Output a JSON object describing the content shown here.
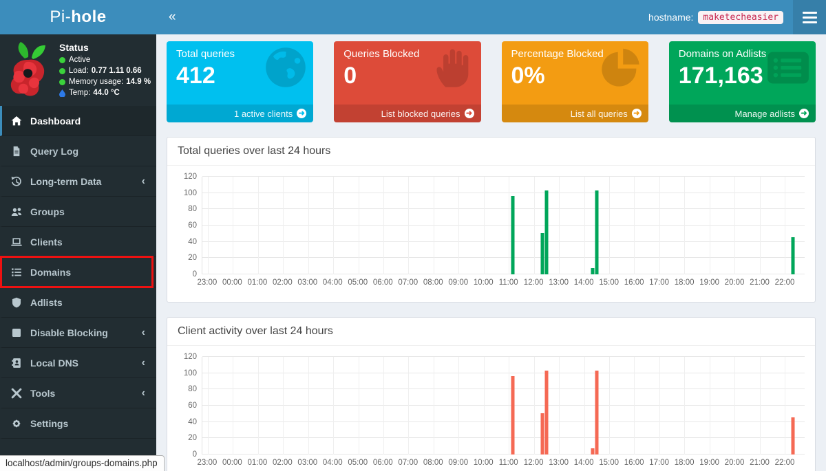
{
  "header": {
    "brand_pre": "Pi-",
    "brand_bold": "hole",
    "collapse_icon": "«",
    "hostname_label": "hostname:",
    "hostname_value": "maketecheasier"
  },
  "theme": {
    "navbar_blue": "#3c8dbc",
    "navbar_dark_blue": "#367fa9",
    "sidebar_dark": "#222d32",
    "annotation_red": "#ee1111",
    "status_dot_green": "#3bd23b",
    "temp_drop_blue": "#2d7ae8"
  },
  "sidebar": {
    "status": {
      "title": "Status",
      "rows": [
        {
          "icon": "green-dot-icon",
          "label": "Active",
          "value": ""
        },
        {
          "icon": "green-dot-icon",
          "label": "Load:",
          "value": "0.77  1.11  0.66"
        },
        {
          "icon": "green-dot-icon",
          "label": "Memory usage:",
          "value": "14.9 %"
        },
        {
          "icon": "temp-drop-icon",
          "label": "Temp:",
          "value": "44.0 °C"
        }
      ]
    },
    "menu": [
      {
        "label": "Dashboard",
        "icon": "home-icon",
        "active": true,
        "expandable": false,
        "annotated": false
      },
      {
        "label": "Query Log",
        "icon": "file-icon",
        "active": false,
        "expandable": false,
        "annotated": false
      },
      {
        "label": "Long-term Data",
        "icon": "history-icon",
        "active": false,
        "expandable": true,
        "annotated": false
      },
      {
        "label": "Groups",
        "icon": "users-icon",
        "active": false,
        "expandable": false,
        "annotated": false
      },
      {
        "label": "Clients",
        "icon": "laptop-icon",
        "active": false,
        "expandable": false,
        "annotated": false
      },
      {
        "label": "Domains",
        "icon": "list-icon",
        "active": false,
        "expandable": false,
        "annotated": true
      },
      {
        "label": "Adlists",
        "icon": "shield-icon",
        "active": false,
        "expandable": false,
        "annotated": false
      },
      {
        "label": "Disable Blocking",
        "icon": "stop-icon",
        "active": false,
        "expandable": true,
        "annotated": false
      },
      {
        "label": "Local DNS",
        "icon": "address-book-icon",
        "active": false,
        "expandable": true,
        "annotated": false
      },
      {
        "label": "Tools",
        "icon": "tools-icon",
        "active": false,
        "expandable": true,
        "annotated": false
      },
      {
        "label": "Settings",
        "icon": "gear-icon",
        "active": false,
        "expandable": false,
        "annotated": false
      }
    ],
    "chevron": "‹"
  },
  "cards": [
    {
      "title": "Total queries",
      "value": "412",
      "footer": "1 active clients",
      "icon": "globe-icon",
      "color": "#00c0ef"
    },
    {
      "title": "Queries Blocked",
      "value": "0",
      "footer": "List blocked queries",
      "icon": "hand-icon",
      "color": "#dd4b39"
    },
    {
      "title": "Percentage Blocked",
      "value": "0%",
      "footer": "List all queries",
      "icon": "pie-chart-icon",
      "color": "#f39c12"
    },
    {
      "title": "Domains on Adlists",
      "value": "171,163",
      "footer": "Manage adlists",
      "icon": "list-alt-icon",
      "color": "#00a65a"
    }
  ],
  "footer_arrow": "➜",
  "chart_data": [
    {
      "type": "bar",
      "title": "Total queries over last 24 hours",
      "x_ticks": [
        "23:00",
        "00:00",
        "01:00",
        "02:00",
        "03:00",
        "04:00",
        "05:00",
        "06:00",
        "07:00",
        "08:00",
        "09:00",
        "10:00",
        "11:00",
        "12:00",
        "13:00",
        "14:00",
        "15:00",
        "16:00",
        "17:00",
        "18:00",
        "19:00",
        "20:00",
        "21:00",
        "22:00"
      ],
      "y_ticks": [
        0,
        20,
        40,
        60,
        80,
        100,
        120
      ],
      "ylim": [
        0,
        120
      ],
      "grid": true,
      "legend": "none",
      "bar_color": "#00a65a",
      "points": [
        {
          "time": "11:10",
          "value": 96
        },
        {
          "time": "12:20",
          "value": 51
        },
        {
          "time": "12:30",
          "value": 103
        },
        {
          "time": "14:20",
          "value": 8
        },
        {
          "time": "14:30",
          "value": 103
        },
        {
          "time": "22:20",
          "value": 46
        }
      ]
    },
    {
      "type": "bar",
      "title": "Client activity over last 24 hours",
      "x_ticks": [
        "23:00",
        "00:00",
        "01:00",
        "02:00",
        "03:00",
        "04:00",
        "05:00",
        "06:00",
        "07:00",
        "08:00",
        "09:00",
        "10:00",
        "11:00",
        "12:00",
        "13:00",
        "14:00",
        "15:00",
        "16:00",
        "17:00",
        "18:00",
        "19:00",
        "20:00",
        "21:00",
        "22:00"
      ],
      "y_ticks": [
        0,
        20,
        40,
        60,
        80,
        100,
        120
      ],
      "ylim": [
        0,
        120
      ],
      "grid": true,
      "legend": "none",
      "bar_color": "#f56954",
      "points": [
        {
          "time": "11:10",
          "value": 96
        },
        {
          "time": "12:20",
          "value": 51
        },
        {
          "time": "12:30",
          "value": 103
        },
        {
          "time": "14:20",
          "value": 8
        },
        {
          "time": "14:30",
          "value": 103
        },
        {
          "time": "22:20",
          "value": 46
        }
      ]
    }
  ],
  "statusbar": {
    "text": "localhost/admin/groups-domains.php"
  }
}
